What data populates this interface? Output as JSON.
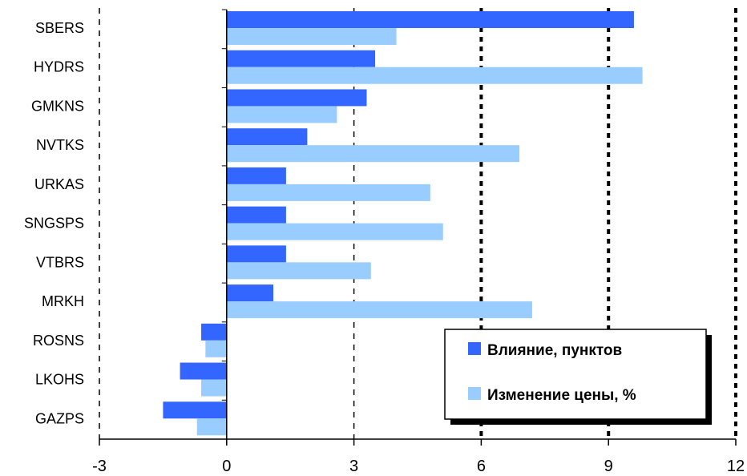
{
  "chart_data": {
    "type": "bar",
    "orientation": "horizontal",
    "categories": [
      "SBERS",
      "HYDRS",
      "GMKNS",
      "NVTKS",
      "URKAS",
      "SNGSPS",
      "VTBRS",
      "MRKH",
      "ROSNS",
      "LKOHS",
      "GAZPS"
    ],
    "series": [
      {
        "name": "Влияние, пунктов",
        "color": "#3366ff",
        "values": [
          9.6,
          3.5,
          3.3,
          1.9,
          1.4,
          1.4,
          1.4,
          1.1,
          -0.6,
          -1.1,
          -1.5
        ]
      },
      {
        "name": "Изменение цены, %",
        "color": "#99ccff",
        "values": [
          4.0,
          9.8,
          2.6,
          6.9,
          4.8,
          5.1,
          3.4,
          7.2,
          -0.5,
          -0.6,
          -0.7
        ]
      }
    ],
    "xlim": [
      -3,
      12
    ],
    "xticks": [
      "-3",
      "0",
      "3",
      "6",
      "9",
      "12"
    ],
    "legend_position": "lower-right",
    "grid": "vertical dashed"
  }
}
